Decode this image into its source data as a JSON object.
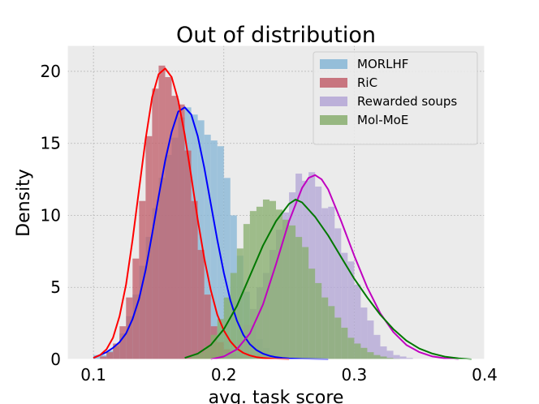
{
  "chart_data": {
    "type": "histogram",
    "title": "Out of distribution",
    "xlabel": "avg. task score",
    "ylabel": "Density",
    "xlim": [
      0.08,
      0.4
    ],
    "ylim": [
      0,
      21.8
    ],
    "xticks": [
      0.1,
      0.2,
      0.3,
      0.4
    ],
    "xtick_labels": [
      "0.1",
      "0.2",
      "0.3",
      "0.4"
    ],
    "yticks": [
      0,
      5,
      10,
      15,
      20
    ],
    "ytick_labels": [
      "0",
      "5",
      "10",
      "15",
      "20"
    ],
    "grid": true,
    "legend_position": "top-right",
    "bin_width": 0.005,
    "series": [
      {
        "name": "MORLHF",
        "hist_color": "#86b6d6",
        "kde_color": "#0000ff",
        "bin_start": 0.1,
        "values": [
          0.3,
          0.3,
          0.6,
          0.9,
          1.8,
          3.0,
          4.5,
          6.5,
          8.5,
          10.5,
          12.6,
          14.2,
          15.4,
          16.8,
          17.5,
          17.0,
          16.6,
          15.6,
          15.2,
          14.8,
          12.6,
          10.0,
          7.2,
          4.7,
          2.4,
          1.4,
          0.8,
          0.4,
          0.2,
          0.1
        ],
        "kde_x": [
          0.1,
          0.105,
          0.11,
          0.115,
          0.12,
          0.125,
          0.13,
          0.135,
          0.14,
          0.145,
          0.15,
          0.155,
          0.16,
          0.165,
          0.17,
          0.175,
          0.18,
          0.185,
          0.19,
          0.195,
          0.2,
          0.205,
          0.21,
          0.215,
          0.22,
          0.225,
          0.23,
          0.235,
          0.24,
          0.245,
          0.25,
          0.26,
          0.27,
          0.28
        ],
        "kde_y": [
          0.1,
          0.3,
          0.5,
          0.8,
          1.2,
          1.8,
          2.8,
          4.2,
          6.2,
          8.7,
          11.3,
          13.8,
          15.8,
          17.2,
          17.5,
          17.0,
          15.5,
          13.3,
          10.8,
          8.3,
          6.0,
          4.1,
          2.7,
          1.7,
          1.05,
          0.65,
          0.4,
          0.25,
          0.15,
          0.1,
          0.06,
          0.03,
          0.01,
          0.0
        ]
      },
      {
        "name": "RiC",
        "hist_color": "#c2606c",
        "kde_color": "#ff0000",
        "bin_start": 0.1,
        "values": [
          0.0,
          0.2,
          0.5,
          1.1,
          2.3,
          4.3,
          7.0,
          11.0,
          15.5,
          18.8,
          20.4,
          19.6,
          18.3,
          17.7,
          14.5,
          11.0,
          7.6,
          4.5,
          2.3,
          1.2,
          0.7,
          0.4,
          0.2,
          0.1
        ],
        "kde_x": [
          0.1,
          0.105,
          0.11,
          0.115,
          0.12,
          0.125,
          0.13,
          0.135,
          0.14,
          0.145,
          0.15,
          0.155,
          0.16,
          0.165,
          0.17,
          0.175,
          0.18,
          0.185,
          0.19,
          0.195,
          0.2,
          0.205,
          0.21,
          0.215,
          0.22,
          0.225,
          0.23,
          0.235,
          0.24,
          0.25
        ],
        "kde_y": [
          0.1,
          0.3,
          0.7,
          1.5,
          3.0,
          5.2,
          8.3,
          11.8,
          15.3,
          18.2,
          19.8,
          20.2,
          19.6,
          18.0,
          15.6,
          12.7,
          9.7,
          7.0,
          4.8,
          3.1,
          2.0,
          1.25,
          0.75,
          0.45,
          0.27,
          0.16,
          0.1,
          0.06,
          0.03,
          0.0
        ]
      },
      {
        "name": "Rewarded soups",
        "hist_color": "#b4a6d6",
        "kde_color": "#c000c0",
        "bin_start": 0.2,
        "values": [
          0.4,
          0.6,
          1.3,
          2.4,
          3.5,
          5.0,
          6.0,
          7.6,
          9.0,
          10.2,
          11.6,
          12.9,
          12.4,
          13.0,
          12.0,
          10.5,
          10.6,
          9.1,
          7.4,
          6.8,
          5.2,
          3.6,
          2.7,
          1.7,
          0.9,
          0.6,
          0.3,
          0.2,
          0.1
        ],
        "kde_x": [
          0.19,
          0.2,
          0.21,
          0.22,
          0.23,
          0.24,
          0.25,
          0.26,
          0.265,
          0.27,
          0.275,
          0.28,
          0.29,
          0.3,
          0.31,
          0.32,
          0.33,
          0.34,
          0.35,
          0.36,
          0.37,
          0.38
        ],
        "kde_y": [
          0.0,
          0.2,
          0.7,
          1.8,
          3.8,
          6.6,
          9.6,
          11.9,
          12.6,
          12.8,
          12.5,
          11.8,
          9.6,
          7.2,
          5.0,
          3.2,
          1.9,
          1.0,
          0.5,
          0.2,
          0.07,
          0.0
        ]
      },
      {
        "name": "Mol-MoE",
        "hist_color": "#88ae6e",
        "kde_color": "#007800",
        "bin_start": 0.175,
        "values": [
          0.3,
          0.5,
          0.9,
          1.7,
          2.8,
          4.3,
          6.0,
          7.7,
          9.4,
          10.3,
          10.6,
          11.1,
          11.0,
          10.4,
          9.7,
          9.3,
          8.5,
          7.8,
          6.3,
          5.3,
          4.3,
          3.7,
          2.9,
          2.2,
          1.5,
          1.1,
          0.8,
          0.5,
          0.3,
          0.2,
          0.1,
          0.05
        ],
        "kde_x": [
          0.17,
          0.18,
          0.19,
          0.2,
          0.21,
          0.22,
          0.23,
          0.24,
          0.25,
          0.255,
          0.26,
          0.27,
          0.28,
          0.29,
          0.3,
          0.31,
          0.32,
          0.33,
          0.34,
          0.35,
          0.36,
          0.37,
          0.38,
          0.39
        ],
        "kde_y": [
          0.1,
          0.4,
          1.0,
          2.1,
          3.7,
          5.8,
          7.9,
          9.6,
          10.8,
          11.1,
          10.9,
          9.9,
          8.6,
          7.1,
          5.6,
          4.3,
          3.1,
          2.1,
          1.3,
          0.75,
          0.4,
          0.18,
          0.07,
          0.0
        ]
      }
    ]
  }
}
